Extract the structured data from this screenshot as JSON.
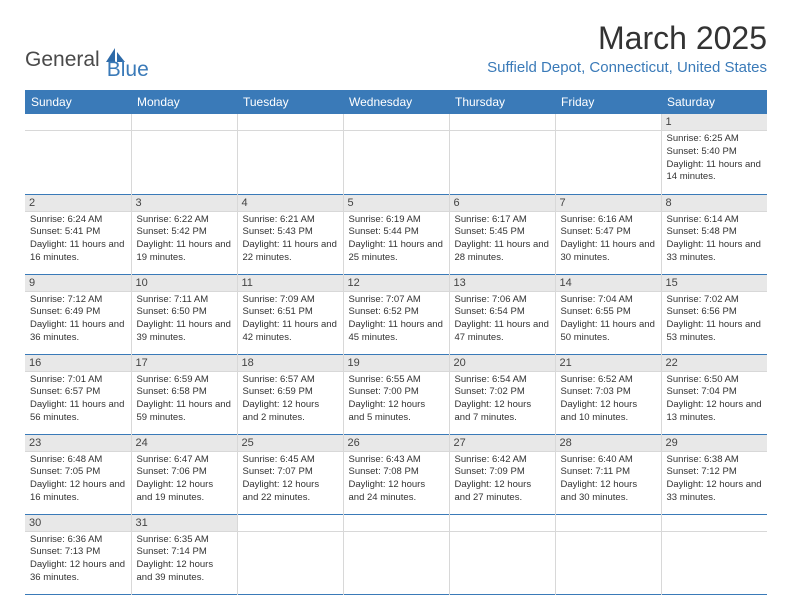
{
  "logo": {
    "text_general": "General",
    "text_blue": "Blue",
    "icon_color": "#2e6aa8"
  },
  "header": {
    "month_title": "March 2025",
    "location": "Suffield Depot, Connecticut, United States"
  },
  "colors": {
    "header_bg": "#3a7ab8",
    "header_text": "#ffffff",
    "day_num_bg": "#e8e8e8",
    "border": "#3a7ab8"
  },
  "day_names": [
    "Sunday",
    "Monday",
    "Tuesday",
    "Wednesday",
    "Thursday",
    "Friday",
    "Saturday"
  ],
  "weeks": [
    [
      {
        "day": "",
        "sunrise": "",
        "sunset": "",
        "daylight": ""
      },
      {
        "day": "",
        "sunrise": "",
        "sunset": "",
        "daylight": ""
      },
      {
        "day": "",
        "sunrise": "",
        "sunset": "",
        "daylight": ""
      },
      {
        "day": "",
        "sunrise": "",
        "sunset": "",
        "daylight": ""
      },
      {
        "day": "",
        "sunrise": "",
        "sunset": "",
        "daylight": ""
      },
      {
        "day": "",
        "sunrise": "",
        "sunset": "",
        "daylight": ""
      },
      {
        "day": "1",
        "sunrise": "Sunrise: 6:25 AM",
        "sunset": "Sunset: 5:40 PM",
        "daylight": "Daylight: 11 hours and 14 minutes."
      }
    ],
    [
      {
        "day": "2",
        "sunrise": "Sunrise: 6:24 AM",
        "sunset": "Sunset: 5:41 PM",
        "daylight": "Daylight: 11 hours and 16 minutes."
      },
      {
        "day": "3",
        "sunrise": "Sunrise: 6:22 AM",
        "sunset": "Sunset: 5:42 PM",
        "daylight": "Daylight: 11 hours and 19 minutes."
      },
      {
        "day": "4",
        "sunrise": "Sunrise: 6:21 AM",
        "sunset": "Sunset: 5:43 PM",
        "daylight": "Daylight: 11 hours and 22 minutes."
      },
      {
        "day": "5",
        "sunrise": "Sunrise: 6:19 AM",
        "sunset": "Sunset: 5:44 PM",
        "daylight": "Daylight: 11 hours and 25 minutes."
      },
      {
        "day": "6",
        "sunrise": "Sunrise: 6:17 AM",
        "sunset": "Sunset: 5:45 PM",
        "daylight": "Daylight: 11 hours and 28 minutes."
      },
      {
        "day": "7",
        "sunrise": "Sunrise: 6:16 AM",
        "sunset": "Sunset: 5:47 PM",
        "daylight": "Daylight: 11 hours and 30 minutes."
      },
      {
        "day": "8",
        "sunrise": "Sunrise: 6:14 AM",
        "sunset": "Sunset: 5:48 PM",
        "daylight": "Daylight: 11 hours and 33 minutes."
      }
    ],
    [
      {
        "day": "9",
        "sunrise": "Sunrise: 7:12 AM",
        "sunset": "Sunset: 6:49 PM",
        "daylight": "Daylight: 11 hours and 36 minutes."
      },
      {
        "day": "10",
        "sunrise": "Sunrise: 7:11 AM",
        "sunset": "Sunset: 6:50 PM",
        "daylight": "Daylight: 11 hours and 39 minutes."
      },
      {
        "day": "11",
        "sunrise": "Sunrise: 7:09 AM",
        "sunset": "Sunset: 6:51 PM",
        "daylight": "Daylight: 11 hours and 42 minutes."
      },
      {
        "day": "12",
        "sunrise": "Sunrise: 7:07 AM",
        "sunset": "Sunset: 6:52 PM",
        "daylight": "Daylight: 11 hours and 45 minutes."
      },
      {
        "day": "13",
        "sunrise": "Sunrise: 7:06 AM",
        "sunset": "Sunset: 6:54 PM",
        "daylight": "Daylight: 11 hours and 47 minutes."
      },
      {
        "day": "14",
        "sunrise": "Sunrise: 7:04 AM",
        "sunset": "Sunset: 6:55 PM",
        "daylight": "Daylight: 11 hours and 50 minutes."
      },
      {
        "day": "15",
        "sunrise": "Sunrise: 7:02 AM",
        "sunset": "Sunset: 6:56 PM",
        "daylight": "Daylight: 11 hours and 53 minutes."
      }
    ],
    [
      {
        "day": "16",
        "sunrise": "Sunrise: 7:01 AM",
        "sunset": "Sunset: 6:57 PM",
        "daylight": "Daylight: 11 hours and 56 minutes."
      },
      {
        "day": "17",
        "sunrise": "Sunrise: 6:59 AM",
        "sunset": "Sunset: 6:58 PM",
        "daylight": "Daylight: 11 hours and 59 minutes."
      },
      {
        "day": "18",
        "sunrise": "Sunrise: 6:57 AM",
        "sunset": "Sunset: 6:59 PM",
        "daylight": "Daylight: 12 hours and 2 minutes."
      },
      {
        "day": "19",
        "sunrise": "Sunrise: 6:55 AM",
        "sunset": "Sunset: 7:00 PM",
        "daylight": "Daylight: 12 hours and 5 minutes."
      },
      {
        "day": "20",
        "sunrise": "Sunrise: 6:54 AM",
        "sunset": "Sunset: 7:02 PM",
        "daylight": "Daylight: 12 hours and 7 minutes."
      },
      {
        "day": "21",
        "sunrise": "Sunrise: 6:52 AM",
        "sunset": "Sunset: 7:03 PM",
        "daylight": "Daylight: 12 hours and 10 minutes."
      },
      {
        "day": "22",
        "sunrise": "Sunrise: 6:50 AM",
        "sunset": "Sunset: 7:04 PM",
        "daylight": "Daylight: 12 hours and 13 minutes."
      }
    ],
    [
      {
        "day": "23",
        "sunrise": "Sunrise: 6:48 AM",
        "sunset": "Sunset: 7:05 PM",
        "daylight": "Daylight: 12 hours and 16 minutes."
      },
      {
        "day": "24",
        "sunrise": "Sunrise: 6:47 AM",
        "sunset": "Sunset: 7:06 PM",
        "daylight": "Daylight: 12 hours and 19 minutes."
      },
      {
        "day": "25",
        "sunrise": "Sunrise: 6:45 AM",
        "sunset": "Sunset: 7:07 PM",
        "daylight": "Daylight: 12 hours and 22 minutes."
      },
      {
        "day": "26",
        "sunrise": "Sunrise: 6:43 AM",
        "sunset": "Sunset: 7:08 PM",
        "daylight": "Daylight: 12 hours and 24 minutes."
      },
      {
        "day": "27",
        "sunrise": "Sunrise: 6:42 AM",
        "sunset": "Sunset: 7:09 PM",
        "daylight": "Daylight: 12 hours and 27 minutes."
      },
      {
        "day": "28",
        "sunrise": "Sunrise: 6:40 AM",
        "sunset": "Sunset: 7:11 PM",
        "daylight": "Daylight: 12 hours and 30 minutes."
      },
      {
        "day": "29",
        "sunrise": "Sunrise: 6:38 AM",
        "sunset": "Sunset: 7:12 PM",
        "daylight": "Daylight: 12 hours and 33 minutes."
      }
    ],
    [
      {
        "day": "30",
        "sunrise": "Sunrise: 6:36 AM",
        "sunset": "Sunset: 7:13 PM",
        "daylight": "Daylight: 12 hours and 36 minutes."
      },
      {
        "day": "31",
        "sunrise": "Sunrise: 6:35 AM",
        "sunset": "Sunset: 7:14 PM",
        "daylight": "Daylight: 12 hours and 39 minutes."
      },
      {
        "day": "",
        "sunrise": "",
        "sunset": "",
        "daylight": ""
      },
      {
        "day": "",
        "sunrise": "",
        "sunset": "",
        "daylight": ""
      },
      {
        "day": "",
        "sunrise": "",
        "sunset": "",
        "daylight": ""
      },
      {
        "day": "",
        "sunrise": "",
        "sunset": "",
        "daylight": ""
      },
      {
        "day": "",
        "sunrise": "",
        "sunset": "",
        "daylight": ""
      }
    ]
  ]
}
